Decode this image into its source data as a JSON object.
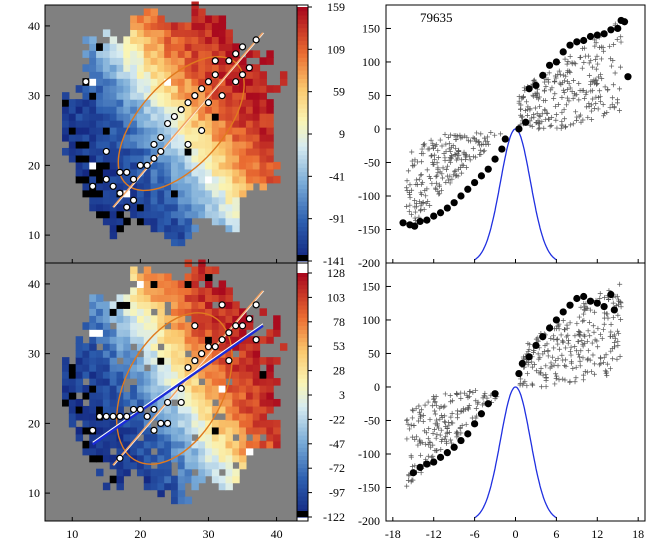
{
  "chart_data": [
    {
      "type": "heatmap",
      "panel": "top-left",
      "x_ticks": [
        10,
        20,
        30,
        40
      ],
      "y_ticks": [
        10,
        20,
        30,
        40
      ],
      "xlim": [
        6,
        43
      ],
      "ylim": [
        6,
        43
      ],
      "colorbar": {
        "ticks": [
          "159",
          "109",
          "59",
          "9",
          "-41",
          "-91",
          "-141"
        ],
        "range": [
          -141,
          159
        ]
      },
      "spots": [
        [
          13,
          17
        ],
        [
          15,
          18
        ],
        [
          16,
          17
        ],
        [
          17,
          19
        ],
        [
          18,
          19
        ],
        [
          19,
          18
        ],
        [
          20,
          20
        ],
        [
          21,
          20
        ],
        [
          22,
          21
        ],
        [
          23,
          22
        ],
        [
          23,
          24
        ],
        [
          24,
          26
        ],
        [
          25,
          27
        ],
        [
          26,
          28
        ],
        [
          27,
          29
        ],
        [
          28,
          30
        ],
        [
          29,
          31
        ],
        [
          30,
          32
        ],
        [
          31,
          33
        ],
        [
          33,
          35
        ],
        [
          34,
          36
        ],
        [
          35,
          37
        ],
        [
          37,
          38
        ],
        [
          12,
          32
        ],
        [
          30,
          29
        ],
        [
          32,
          30
        ],
        [
          34,
          32
        ],
        [
          35,
          33
        ],
        [
          31,
          35
        ],
        [
          36,
          34
        ],
        [
          18,
          14
        ],
        [
          19,
          15
        ],
        [
          15,
          22
        ],
        [
          17,
          16
        ],
        [
          22,
          23
        ],
        [
          27,
          23
        ],
        [
          29,
          25
        ]
      ],
      "fit_line": {
        "x": [
          16,
          38
        ],
        "y": [
          14,
          39
        ]
      },
      "ellipse": {
        "cx": 26,
        "cy": 26,
        "rx": 12,
        "ry": 6,
        "angle_deg": 48
      }
    },
    {
      "type": "scatter",
      "panel": "top-right",
      "title": "79635",
      "x_ticks": [
        -18,
        -12,
        -6,
        0,
        6,
        12,
        18
      ],
      "y_ticks": [
        -200,
        -150,
        -100,
        -50,
        0,
        50,
        100,
        150
      ],
      "xlim": [
        -19,
        19
      ],
      "ylim": [
        -200,
        185
      ],
      "filled_points": [
        [
          -16.5,
          -140
        ],
        [
          -15.5,
          -143
        ],
        [
          -14.8,
          -145
        ],
        [
          -14,
          -138
        ],
        [
          -13,
          -136
        ],
        [
          -12,
          -130
        ],
        [
          -11,
          -125
        ],
        [
          -10,
          -118
        ],
        [
          -9,
          -110
        ],
        [
          -8,
          -100
        ],
        [
          -7,
          -90
        ],
        [
          -6,
          -80
        ],
        [
          -5,
          -70
        ],
        [
          -4,
          -60
        ],
        [
          -3,
          -45
        ],
        [
          -2,
          -30
        ],
        [
          -1.5,
          -15
        ],
        [
          0.5,
          0
        ],
        [
          1.5,
          10
        ],
        [
          2,
          60
        ],
        [
          3,
          65
        ],
        [
          4,
          80
        ],
        [
          5,
          95
        ],
        [
          6,
          100
        ],
        [
          7,
          115
        ],
        [
          8,
          125
        ],
        [
          9,
          130
        ],
        [
          10,
          132
        ],
        [
          11,
          138
        ],
        [
          12,
          140
        ],
        [
          13,
          142
        ],
        [
          14,
          148
        ],
        [
          15,
          150
        ],
        [
          15.5,
          162
        ],
        [
          16,
          160
        ],
        [
          16.5,
          78
        ]
      ],
      "gaussian": {
        "mu": 0,
        "sigma": 2.2,
        "peak": 0,
        "base": -200
      }
    },
    {
      "type": "heatmap",
      "panel": "bottom-left",
      "x_ticks": [
        10,
        20,
        30,
        40
      ],
      "y_ticks": [
        10,
        20,
        30,
        40
      ],
      "xlim": [
        6,
        43
      ],
      "ylim": [
        6,
        43
      ],
      "colorbar": {
        "ticks": [
          "128",
          "103",
          "78",
          "53",
          "28",
          "3",
          "-22",
          "-47",
          "-72",
          "-97",
          "-122"
        ],
        "range": [
          -122,
          128
        ]
      },
      "spots": [
        [
          13,
          19
        ],
        [
          14,
          21
        ],
        [
          15,
          21
        ],
        [
          16,
          21
        ],
        [
          17,
          21
        ],
        [
          18,
          21
        ],
        [
          19,
          22
        ],
        [
          20,
          22
        ],
        [
          21,
          21
        ],
        [
          22,
          22
        ],
        [
          23,
          20
        ],
        [
          24,
          23
        ],
        [
          26,
          25
        ],
        [
          27,
          28
        ],
        [
          28,
          29
        ],
        [
          29,
          30
        ],
        [
          30,
          31
        ],
        [
          31,
          31
        ],
        [
          32,
          32
        ],
        [
          33,
          33
        ],
        [
          34,
          34
        ],
        [
          35,
          34
        ],
        [
          36,
          35
        ],
        [
          37,
          32
        ],
        [
          17,
          15
        ],
        [
          22,
          19
        ],
        [
          26,
          23
        ],
        [
          32,
          37
        ],
        [
          28,
          34
        ],
        [
          24,
          20
        ],
        [
          33,
          29
        ],
        [
          37,
          37
        ]
      ],
      "fit_line": {
        "x": [
          16,
          38
        ],
        "y": [
          14,
          39
        ]
      },
      "blue_line": {
        "x": [
          13,
          38
        ],
        "y": [
          17,
          34
        ]
      },
      "ellipse": {
        "cx": 25,
        "cy": 25,
        "rx": 12,
        "ry": 7,
        "angle_deg": 62
      }
    },
    {
      "type": "scatter",
      "panel": "bottom-right",
      "x_ticks": [
        -18,
        -12,
        -6,
        0,
        6,
        12,
        18
      ],
      "y_ticks": [
        -200,
        -150,
        -100,
        -50,
        0,
        50,
        100,
        150
      ],
      "xlim": [
        -19,
        19
      ],
      "ylim": [
        -200,
        185
      ],
      "filled_points": [
        [
          -15,
          -128
        ],
        [
          -14,
          -120
        ],
        [
          -13,
          -115
        ],
        [
          -12,
          -112
        ],
        [
          -11,
          -105
        ],
        [
          -10,
          -98
        ],
        [
          -9,
          -90
        ],
        [
          -8,
          -80
        ],
        [
          -7,
          -70
        ],
        [
          -6,
          -55
        ],
        [
          -5,
          -40
        ],
        [
          -4,
          -25
        ],
        [
          -3,
          -10
        ],
        [
          0.5,
          20
        ],
        [
          1,
          35
        ],
        [
          2,
          45
        ],
        [
          3,
          62
        ],
        [
          4,
          75
        ],
        [
          5,
          88
        ],
        [
          6,
          100
        ],
        [
          7,
          112
        ],
        [
          8,
          122
        ],
        [
          9,
          132
        ],
        [
          10,
          135
        ],
        [
          11,
          128
        ],
        [
          12,
          125
        ],
        [
          13,
          120
        ],
        [
          14,
          138
        ],
        [
          14.5,
          115
        ]
      ],
      "gaussian": {
        "mu": 0,
        "sigma": 2.2,
        "peak": 0,
        "base": -200
      }
    }
  ],
  "colors": {
    "map_background": "#808080",
    "fit_line": "#f0a060",
    "ellipse": "#e07a1e",
    "blue_line": "#1a2bd8",
    "gaussian": "#2030e0"
  }
}
